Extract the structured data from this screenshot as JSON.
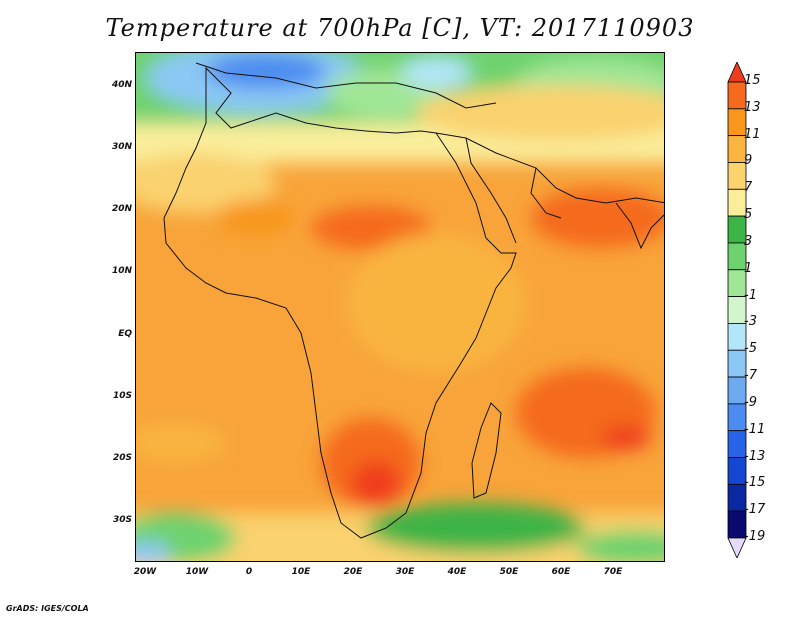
{
  "title": "Temperature at 700hPa [C], VT: 2017110903",
  "credit": "GrADS: IGES/COLA",
  "lat_labels": [
    "40N",
    "30N",
    "20N",
    "10N",
    "EQ",
    "10S",
    "20S",
    "30S"
  ],
  "lon_labels": [
    "20W",
    "10W",
    "0",
    "10E",
    "20E",
    "30E",
    "40E",
    "50E",
    "60E",
    "70E"
  ],
  "colorbar": {
    "labels": [
      "15",
      "13",
      "11",
      "9",
      "7",
      "5",
      "3",
      "1",
      "-1",
      "-3",
      "-5",
      "-7",
      "-9",
      "-11",
      "-13",
      "-15",
      "-17",
      "-19"
    ],
    "colors": [
      "#f03c1e",
      "#f56a1e",
      "#f8961e",
      "#f9b441",
      "#fad26e",
      "#faee9b",
      "#3cb446",
      "#6ed26e",
      "#a0e696",
      "#d2f5cd",
      "#b4e6fa",
      "#8cc8f5",
      "#6eaaf0",
      "#4b8cf0",
      "#2864e6",
      "#1446d2",
      "#0a28a0",
      "#0a0a6e",
      "#e6dcff"
    ]
  }
}
